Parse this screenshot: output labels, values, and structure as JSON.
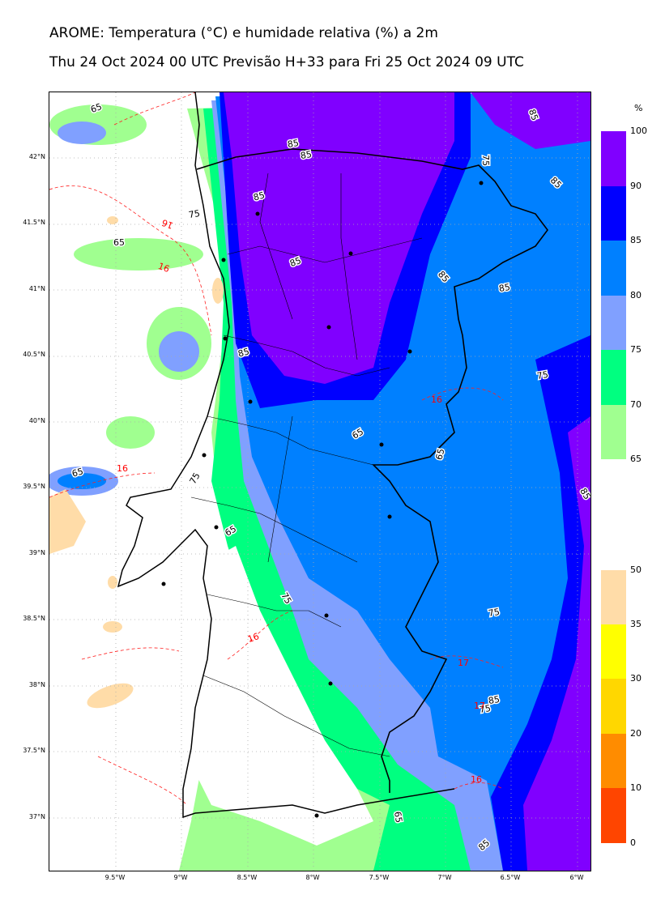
{
  "header": {
    "title": "AROME: Temperatura (°C) e humidade relativa (%) a 2m",
    "subtitle": "Thu 24 Oct 2024 00 UTC Previsão H+33 para Fri 25 Oct 2024 09 UTC"
  },
  "axes": {
    "lat_labels": [
      "42°N",
      "41.5°N",
      "41°N",
      "40.5°N",
      "40°N",
      "39.5°N",
      "39°N",
      "38.5°N",
      "38°N",
      "37.5°N",
      "37°N"
    ],
    "lon_labels": [
      "9.5°W",
      "9°W",
      "8.5°W",
      "8°W",
      "7.5°W",
      "7°W",
      "6.5°W",
      "6°W"
    ]
  },
  "humidity_colorbar": {
    "unit": "%",
    "levels": [
      "100",
      "90",
      "85",
      "80",
      "75",
      "70",
      "65"
    ],
    "colors": [
      "#8000ff",
      "#0000ff",
      "#0080ff",
      "#80a0ff",
      "#00ff80",
      "#a0ff90"
    ]
  },
  "temperature_colorbar": {
    "levels": [
      "50",
      "35",
      "30",
      "20",
      "10",
      "0"
    ],
    "colors": [
      "#ffdca8",
      "#ffff00",
      "#ffd700",
      "#ff8c00",
      "#ff4500"
    ]
  },
  "contour_labels": [
    {
      "text": "65",
      "color": "black"
    },
    {
      "text": "85",
      "color": "black"
    },
    {
      "text": "85",
      "color": "black"
    },
    {
      "text": "85",
      "color": "black"
    },
    {
      "text": "75",
      "color": "black"
    },
    {
      "text": "65",
      "color": "black"
    },
    {
      "text": "85",
      "color": "black"
    },
    {
      "text": "85",
      "color": "black"
    },
    {
      "text": "85",
      "color": "black"
    },
    {
      "text": "75",
      "color": "black"
    },
    {
      "text": "85",
      "color": "black"
    },
    {
      "text": "85",
      "color": "black"
    },
    {
      "text": "85",
      "color": "black"
    },
    {
      "text": "75",
      "color": "black"
    },
    {
      "text": "65",
      "color": "black"
    },
    {
      "text": "65",
      "color": "black"
    },
    {
      "text": "65",
      "color": "black"
    },
    {
      "text": "75",
      "color": "black"
    },
    {
      "text": "85",
      "color": "black"
    },
    {
      "text": "65",
      "color": "black"
    },
    {
      "text": "75",
      "color": "black"
    },
    {
      "text": "75",
      "color": "black"
    },
    {
      "text": "85",
      "color": "black"
    },
    {
      "text": "75",
      "color": "black"
    },
    {
      "text": "65",
      "color": "black"
    },
    {
      "text": "85",
      "color": "black"
    },
    {
      "text": "16",
      "color": "red"
    },
    {
      "text": "16",
      "color": "red"
    },
    {
      "text": "16",
      "color": "red"
    },
    {
      "text": "16",
      "color": "red"
    },
    {
      "text": "16",
      "color": "red"
    },
    {
      "text": "17",
      "color": "red"
    },
    {
      "text": "17",
      "color": "red"
    },
    {
      "text": "16",
      "color": "red"
    }
  ]
}
